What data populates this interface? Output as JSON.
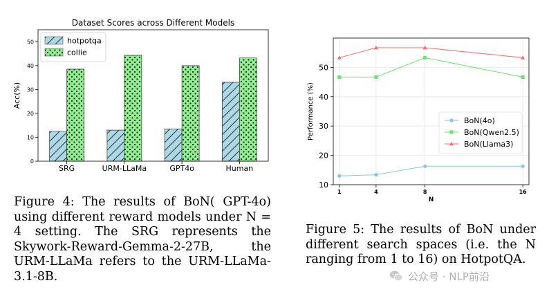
{
  "chart_data": [
    {
      "type": "bar",
      "title": "Dataset Scores across Different Models",
      "ylabel": "Acc(%)",
      "xlabel": "",
      "categories": [
        "SRG",
        "URM-LLaMa",
        "GPT4o",
        "Human"
      ],
      "ylim": [
        0,
        55
      ],
      "yticks": [
        0,
        10,
        20,
        30,
        40,
        50
      ],
      "legend_position": "top-left",
      "grid": false,
      "series": [
        {
          "name": "hotpotqa",
          "values": [
            12.5,
            13.0,
            13.5,
            33.0
          ],
          "color": "#add8e6",
          "pattern": "hatch"
        },
        {
          "name": "collie",
          "values": [
            38.5,
            44.3,
            40.0,
            43.2
          ],
          "color": "#90ee90",
          "pattern": "dots"
        }
      ]
    },
    {
      "type": "line",
      "xlabel": "N",
      "ylabel": "Performance (%)",
      "title": "",
      "x": [
        1,
        4,
        8,
        16
      ],
      "xticks": [
        1,
        4,
        8,
        16
      ],
      "xlim": [
        0.5,
        16.5
      ],
      "ylim": [
        10,
        60
      ],
      "yticks": [
        10,
        20,
        30,
        40,
        50
      ],
      "grid": true,
      "legend_position": "center-right",
      "series": [
        {
          "name": "BoN(4o)",
          "values": [
            13.0,
            13.4,
            16.3,
            16.3
          ],
          "color": "#87c5e3",
          "marker": "circle"
        },
        {
          "name": "BoN(Qwen2.5)",
          "values": [
            46.7,
            46.7,
            53.3,
            46.7
          ],
          "color": "#6ee36e",
          "marker": "square"
        },
        {
          "name": "BoN(Llama3)",
          "values": [
            53.3,
            56.7,
            56.7,
            53.3
          ],
          "color": "#f07070",
          "marker": "triangle"
        }
      ]
    }
  ],
  "captions": {
    "fig4": "Figure 4: The results of BoN( GPT-4o) using different reward models under N = 4 setting. The SRG represents the Skywork-Reward-Gemma-2-27B, the URM-LLaMa refers to the URM-LLaMa-3.1-8B.",
    "fig5": "Figure 5: The results of BoN under different search spaces (i.e. the N ranging from 1 to 16) on HotpotQA."
  },
  "watermark": {
    "text": "公众号 · NLP前沿",
    "icon": "wechat-icon"
  }
}
